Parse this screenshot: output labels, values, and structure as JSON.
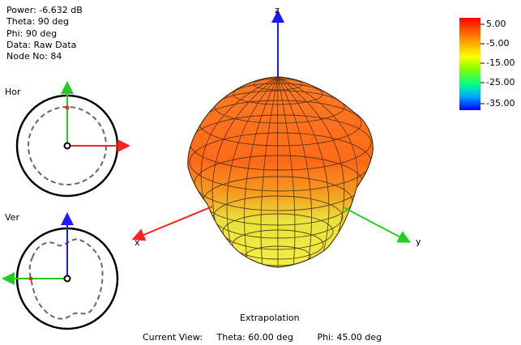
{
  "info": {
    "power": "Power: -6.632 dB",
    "theta": "Theta: 90 deg",
    "phi": "Phi: 90 deg",
    "data": "Data: Raw Data",
    "node": "Node No: 84"
  },
  "views": {
    "hor_label": "Hor",
    "ver_label": "Ver"
  },
  "axes": {
    "z": "z",
    "x": "x",
    "y": "y"
  },
  "colorbar": {
    "ticks": [
      "5.00",
      "-5.00",
      "-15.00",
      "-25.00",
      "-35.00"
    ],
    "colors": [
      "#ff0000",
      "#ff8800",
      "#ffff00",
      "#00ff66",
      "#0000ff"
    ]
  },
  "footer": {
    "title": "Extrapolation",
    "current_view": "Current View:",
    "theta": "Theta: 60.00 deg",
    "phi": "Phi: 45.00 deg"
  },
  "colors": {
    "z_axis": "#1a1aff",
    "x_axis": "#ff2020",
    "y_axis": "#22cc22",
    "pattern_top": "#ff6a1a",
    "pattern_mid": "#f09a1a",
    "pattern_bottom": "#e6f03c"
  }
}
